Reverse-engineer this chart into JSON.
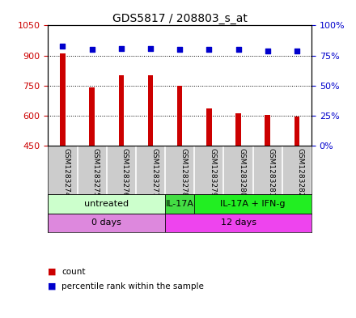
{
  "title": "GDS5817 / 208803_s_at",
  "samples": [
    "GSM1283274",
    "GSM1283275",
    "GSM1283276",
    "GSM1283277",
    "GSM1283278",
    "GSM1283279",
    "GSM1283280",
    "GSM1283281",
    "GSM1283282"
  ],
  "counts": [
    910,
    740,
    800,
    800,
    750,
    635,
    610,
    605,
    595
  ],
  "percentiles": [
    83,
    80,
    81,
    81,
    80,
    80,
    80,
    79,
    79
  ],
  "ylim_left": [
    450,
    1050
  ],
  "ylim_right": [
    0,
    100
  ],
  "yticks_left": [
    450,
    600,
    750,
    900,
    1050
  ],
  "yticks_right": [
    0,
    25,
    50,
    75,
    100
  ],
  "bar_color": "#cc0000",
  "dot_color": "#0000cc",
  "bar_bottom": 450,
  "bar_width": 0.18,
  "protocol_groups": [
    {
      "label": "untreated",
      "start": 0,
      "end": 4,
      "color": "#ccffcc"
    },
    {
      "label": "IL-17A",
      "start": 4,
      "end": 5,
      "color": "#44dd44"
    },
    {
      "label": "IL-17A + IFN-g",
      "start": 5,
      "end": 9,
      "color": "#22ee22"
    }
  ],
  "time_groups": [
    {
      "label": "0 days",
      "start": 0,
      "end": 4,
      "color": "#dd88dd"
    },
    {
      "label": "12 days",
      "start": 4,
      "end": 9,
      "color": "#ee44ee"
    }
  ],
  "sample_bg_color": "#cccccc",
  "sample_divider_color": "#ffffff",
  "legend_count_color": "#cc0000",
  "legend_pct_color": "#0000cc",
  "title_fontsize": 10,
  "label_fontsize": 8,
  "sample_fontsize": 6.5,
  "legend_fontsize": 7.5
}
